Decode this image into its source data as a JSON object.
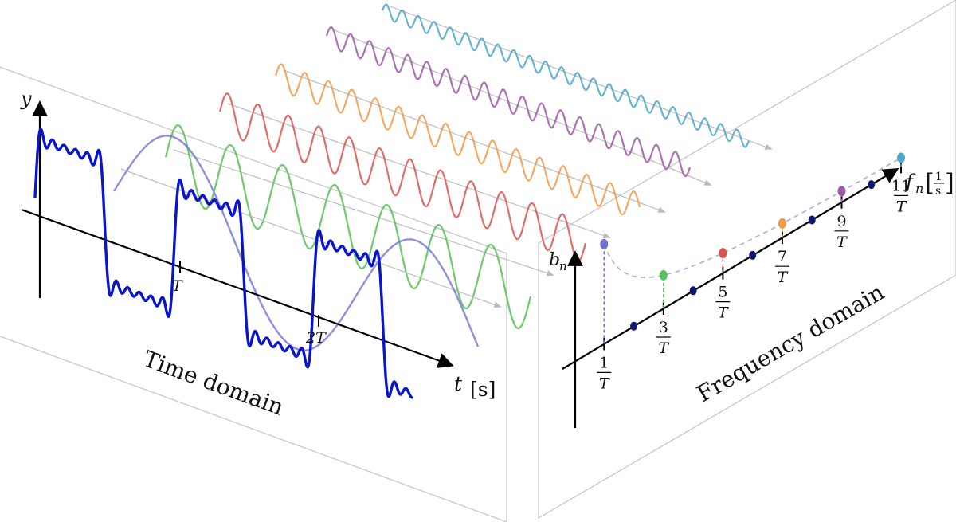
{
  "time_domain": {
    "title": "Time domain",
    "y_axis_label": "y",
    "t_axis_label": "t",
    "t_axis_unit": "[s]",
    "tick_labels": [
      "T",
      "2T"
    ]
  },
  "frequency_domain": {
    "title": "Frequency domain",
    "y_axis_label": "b",
    "y_axis_subscript": "n",
    "f_axis_label": "f",
    "f_axis_subscript": "n",
    "f_axis_unit_num": "1",
    "f_axis_unit_den": "s",
    "tick_numerators": [
      "1",
      "3",
      "5",
      "7",
      "9",
      "11"
    ],
    "tick_denominator": "T"
  },
  "harmonics": [
    {
      "n": 1,
      "color": "#6f74d4"
    },
    {
      "n": 3,
      "color": "#5bbf5b"
    },
    {
      "n": 5,
      "color": "#d9534f"
    },
    {
      "n": 7,
      "color": "#ee9a4d"
    },
    {
      "n": 9,
      "color": "#9b59a6"
    },
    {
      "n": 11,
      "color": "#4ea6c8"
    }
  ],
  "colors": {
    "square_wave": "#0a14c8",
    "panel_edge": "#c8c8c8",
    "even_dot": "#10186e",
    "envelope": "#a8aee0"
  }
}
